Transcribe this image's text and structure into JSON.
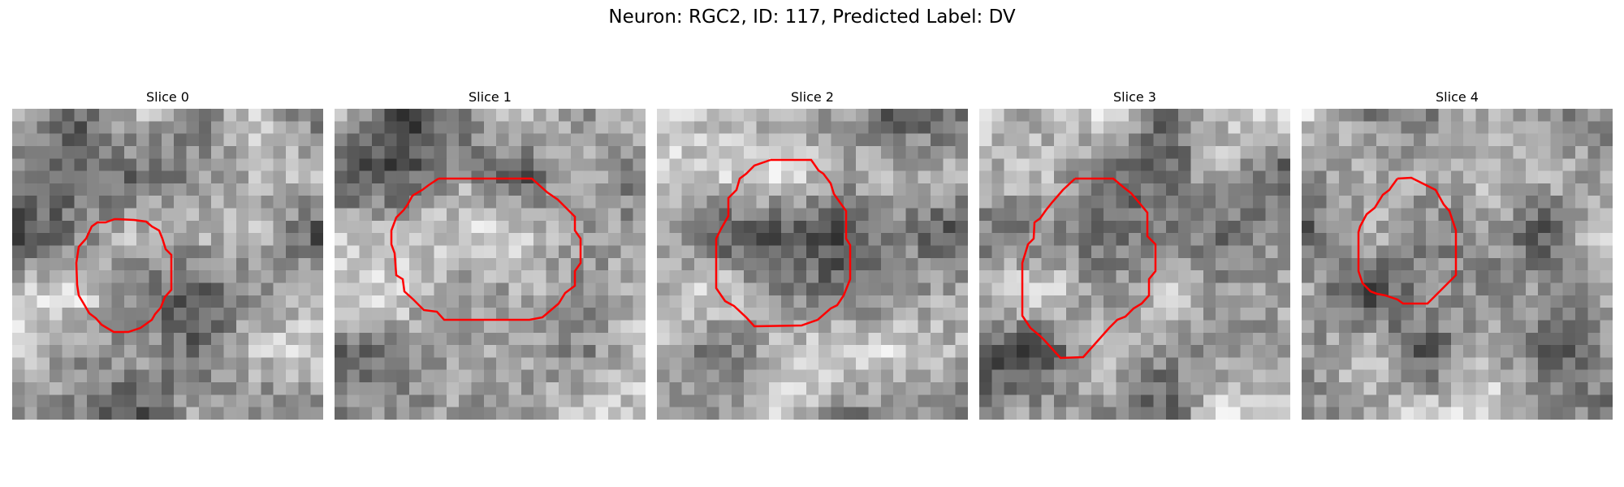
{
  "figure": {
    "suptitle": "Neuron: RGC2, ID: 117, Predicted Label: DV"
  },
  "slices": [
    {
      "title": "Slice 0"
    },
    {
      "title": "Slice 1"
    },
    {
      "title": "Slice 2"
    },
    {
      "title": "Slice 3"
    },
    {
      "title": "Slice 4"
    }
  ],
  "colors": {
    "contour": "#ff0000",
    "colormap": "gray"
  }
}
